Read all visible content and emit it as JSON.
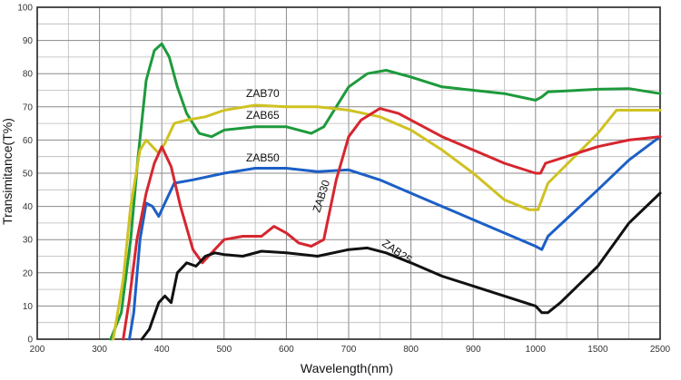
{
  "chart_data": {
    "type": "line",
    "xlabel": "Wavelength(nm)",
    "ylabel": "Transimitance(T%)",
    "x_ticks": [
      "200",
      "300",
      "400",
      "500",
      "600",
      "700",
      "800",
      "900",
      "1000",
      "1500",
      "2500"
    ],
    "y_ticks": [
      "0",
      "10",
      "20",
      "30",
      "40",
      "50",
      "60",
      "70",
      "80",
      "90",
      "100"
    ],
    "ylim": [
      0,
      100
    ],
    "grid": true,
    "series": [
      {
        "name": "ZAB70",
        "color": "#1e9a3c",
        "points": [
          [
            318,
            0
          ],
          [
            335,
            8
          ],
          [
            350,
            30
          ],
          [
            362,
            55
          ],
          [
            375,
            78
          ],
          [
            388,
            87
          ],
          [
            400,
            89
          ],
          [
            412,
            85
          ],
          [
            425,
            76
          ],
          [
            440,
            68
          ],
          [
            460,
            62
          ],
          [
            480,
            61
          ],
          [
            500,
            63
          ],
          [
            550,
            64
          ],
          [
            600,
            64
          ],
          [
            640,
            62
          ],
          [
            660,
            64
          ],
          [
            680,
            70
          ],
          [
            700,
            76
          ],
          [
            730,
            80
          ],
          [
            760,
            81
          ],
          [
            800,
            79
          ],
          [
            850,
            76
          ],
          [
            900,
            75
          ],
          [
            950,
            74
          ],
          [
            1000,
            72
          ],
          [
            1050,
            73
          ],
          [
            1100,
            74.5
          ],
          [
            1500,
            75.3
          ],
          [
            2000,
            75.5
          ],
          [
            2500,
            74
          ]
        ]
      },
      {
        "name": "ZAB65",
        "color": "#cfc222",
        "points": [
          [
            322,
            0
          ],
          [
            338,
            18
          ],
          [
            350,
            40
          ],
          [
            365,
            57
          ],
          [
            375,
            60
          ],
          [
            385,
            58
          ],
          [
            395,
            56
          ],
          [
            405,
            59
          ],
          [
            420,
            65
          ],
          [
            440,
            66
          ],
          [
            470,
            67
          ],
          [
            500,
            69
          ],
          [
            550,
            70.5
          ],
          [
            600,
            70
          ],
          [
            650,
            70
          ],
          [
            700,
            69
          ],
          [
            750,
            67
          ],
          [
            800,
            63
          ],
          [
            850,
            57
          ],
          [
            900,
            50
          ],
          [
            950,
            42
          ],
          [
            990,
            39
          ],
          [
            1020,
            39
          ],
          [
            1100,
            47
          ],
          [
            1500,
            62
          ],
          [
            1800,
            69
          ],
          [
            2500,
            69
          ]
        ]
      },
      {
        "name": "ZAB50",
        "color": "#1c5fc6",
        "points": [
          [
            348,
            0
          ],
          [
            355,
            8
          ],
          [
            365,
            30
          ],
          [
            375,
            41
          ],
          [
            385,
            40
          ],
          [
            395,
            37
          ],
          [
            405,
            41
          ],
          [
            420,
            47
          ],
          [
            450,
            48
          ],
          [
            500,
            50
          ],
          [
            550,
            51.5
          ],
          [
            600,
            51.5
          ],
          [
            650,
            50.5
          ],
          [
            700,
            51
          ],
          [
            750,
            48
          ],
          [
            800,
            44
          ],
          [
            850,
            40
          ],
          [
            900,
            36
          ],
          [
            950,
            32
          ],
          [
            1000,
            28
          ],
          [
            1050,
            27
          ],
          [
            1100,
            31
          ],
          [
            1500,
            45
          ],
          [
            2000,
            54
          ],
          [
            2500,
            61
          ]
        ]
      },
      {
        "name": "ZAB30",
        "color": "#d6262f",
        "points": [
          [
            338,
            0
          ],
          [
            348,
            12
          ],
          [
            360,
            30
          ],
          [
            375,
            44
          ],
          [
            388,
            53
          ],
          [
            400,
            58
          ],
          [
            415,
            52
          ],
          [
            430,
            40
          ],
          [
            450,
            27
          ],
          [
            465,
            23
          ],
          [
            480,
            26
          ],
          [
            500,
            30
          ],
          [
            530,
            31
          ],
          [
            560,
            31
          ],
          [
            580,
            34
          ],
          [
            600,
            32
          ],
          [
            620,
            29
          ],
          [
            640,
            28
          ],
          [
            660,
            30
          ],
          [
            680,
            48
          ],
          [
            700,
            61
          ],
          [
            720,
            66
          ],
          [
            750,
            69.5
          ],
          [
            780,
            68
          ],
          [
            800,
            66
          ],
          [
            850,
            61
          ],
          [
            900,
            57
          ],
          [
            950,
            53
          ],
          [
            1000,
            50
          ],
          [
            1040,
            50
          ],
          [
            1080,
            53
          ],
          [
            1500,
            58
          ],
          [
            2000,
            60
          ],
          [
            2500,
            61
          ]
        ]
      },
      {
        "name": "ZAB25",
        "color": "#111111",
        "points": [
          [
            368,
            0
          ],
          [
            380,
            3
          ],
          [
            395,
            11
          ],
          [
            405,
            13
          ],
          [
            415,
            11
          ],
          [
            425,
            20
          ],
          [
            440,
            23
          ],
          [
            455,
            22
          ],
          [
            470,
            25
          ],
          [
            485,
            26
          ],
          [
            500,
            25.5
          ],
          [
            530,
            25
          ],
          [
            560,
            26.5
          ],
          [
            600,
            26
          ],
          [
            650,
            25
          ],
          [
            700,
            27
          ],
          [
            730,
            27.5
          ],
          [
            760,
            26
          ],
          [
            800,
            23
          ],
          [
            850,
            19
          ],
          [
            900,
            16
          ],
          [
            950,
            13
          ],
          [
            1000,
            10
          ],
          [
            1050,
            8
          ],
          [
            1100,
            8
          ],
          [
            1200,
            11
          ],
          [
            1500,
            22
          ],
          [
            2000,
            35
          ],
          [
            2500,
            44
          ]
        ]
      }
    ]
  }
}
